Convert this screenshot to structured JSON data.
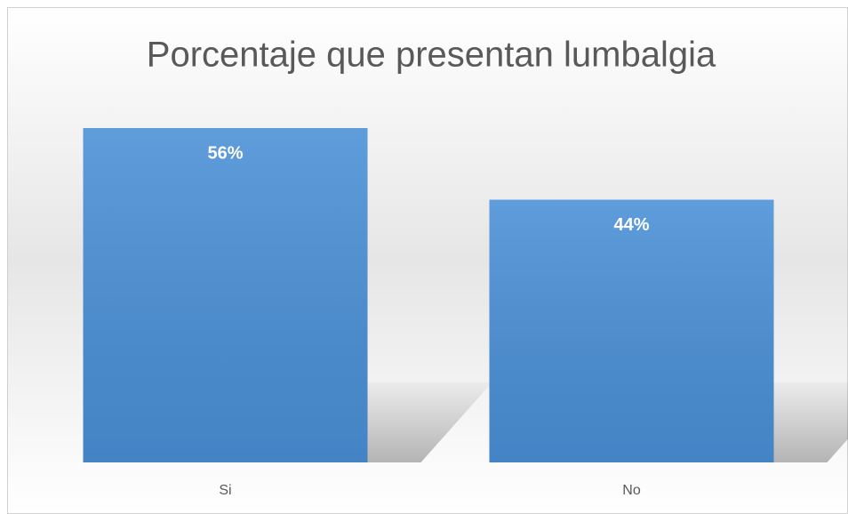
{
  "chart_data": {
    "type": "bar",
    "title": "Porcentaje que presentan lumbalgia",
    "categories": [
      "Si",
      "No"
    ],
    "values": [
      56,
      44
    ],
    "value_labels": [
      "56%",
      "44%"
    ],
    "color": "#4a8fd6"
  }
}
